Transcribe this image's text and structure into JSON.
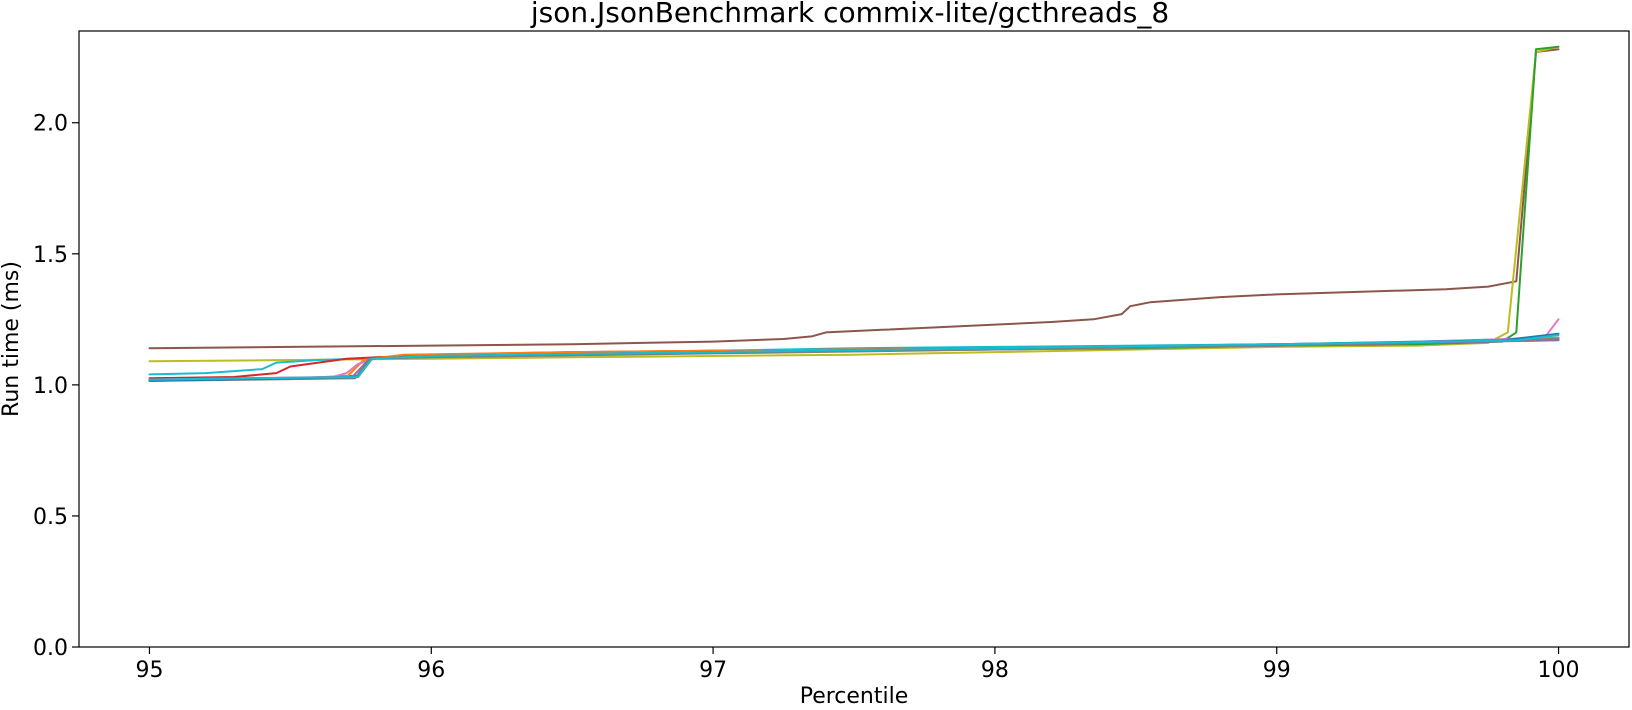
{
  "chart_data": {
    "type": "line",
    "title": "json.JsonBenchmark commix-lite/gcthreads_8",
    "xlabel": "Percentile",
    "ylabel": "Run time (ms)",
    "xlim": [
      94.75,
      100.25
    ],
    "ylim": [
      0.0,
      2.35
    ],
    "xticks": [
      95,
      96,
      97,
      98,
      99,
      100
    ],
    "xtick_labels": [
      "95",
      "96",
      "97",
      "98",
      "99",
      "100"
    ],
    "yticks": [
      0.0,
      0.5,
      1.0,
      1.5,
      2.0
    ],
    "ytick_labels": [
      "0.0",
      "0.5",
      "1.0",
      "1.5",
      "2.0"
    ],
    "grid": false,
    "legend": false,
    "series": [
      {
        "color": "#8c564b",
        "points": [
          [
            95.0,
            1.14
          ],
          [
            95.5,
            1.145
          ],
          [
            96.0,
            1.15
          ],
          [
            96.5,
            1.155
          ],
          [
            97.0,
            1.165
          ],
          [
            97.25,
            1.175
          ],
          [
            97.35,
            1.185
          ],
          [
            97.4,
            1.2
          ],
          [
            97.6,
            1.21
          ],
          [
            97.8,
            1.22
          ],
          [
            98.0,
            1.23
          ],
          [
            98.2,
            1.24
          ],
          [
            98.35,
            1.25
          ],
          [
            98.45,
            1.27
          ],
          [
            98.48,
            1.3
          ],
          [
            98.55,
            1.315
          ],
          [
            98.8,
            1.335
          ],
          [
            99.0,
            1.345
          ],
          [
            99.3,
            1.355
          ],
          [
            99.6,
            1.365
          ],
          [
            99.75,
            1.375
          ],
          [
            99.85,
            1.395
          ],
          [
            99.92,
            2.27
          ],
          [
            100.0,
            2.28
          ]
        ]
      },
      {
        "color": "#bcbd22",
        "points": [
          [
            95.0,
            1.09
          ],
          [
            95.5,
            1.095
          ],
          [
            96.0,
            1.1
          ],
          [
            96.5,
            1.105
          ],
          [
            97.0,
            1.11
          ],
          [
            97.5,
            1.115
          ],
          [
            98.0,
            1.125
          ],
          [
            98.5,
            1.135
          ],
          [
            99.0,
            1.145
          ],
          [
            99.5,
            1.15
          ],
          [
            99.75,
            1.16
          ],
          [
            99.82,
            1.2
          ],
          [
            99.92,
            2.27
          ],
          [
            100.0,
            2.29
          ]
        ]
      },
      {
        "color": "#2ca02c",
        "points": [
          [
            95.0,
            1.02
          ],
          [
            95.5,
            1.025
          ],
          [
            95.74,
            1.035
          ],
          [
            95.78,
            1.1
          ],
          [
            96.0,
            1.11
          ],
          [
            96.5,
            1.12
          ],
          [
            97.0,
            1.125
          ],
          [
            97.5,
            1.13
          ],
          [
            98.0,
            1.135
          ],
          [
            98.5,
            1.14
          ],
          [
            99.0,
            1.15
          ],
          [
            99.5,
            1.155
          ],
          [
            99.8,
            1.165
          ],
          [
            99.85,
            1.2
          ],
          [
            99.92,
            2.28
          ],
          [
            100.0,
            2.29
          ]
        ]
      },
      {
        "color": "#17becf",
        "points": [
          [
            95.0,
            1.04
          ],
          [
            95.2,
            1.045
          ],
          [
            95.4,
            1.06
          ],
          [
            95.45,
            1.085
          ],
          [
            95.6,
            1.095
          ],
          [
            96.0,
            1.11
          ],
          [
            96.5,
            1.12
          ],
          [
            97.0,
            1.13
          ],
          [
            97.5,
            1.14
          ],
          [
            98.0,
            1.145
          ],
          [
            98.5,
            1.15
          ],
          [
            99.0,
            1.155
          ],
          [
            99.5,
            1.165
          ],
          [
            100.0,
            1.18
          ]
        ]
      },
      {
        "color": "#d62728",
        "points": [
          [
            95.0,
            1.025
          ],
          [
            95.3,
            1.03
          ],
          [
            95.45,
            1.045
          ],
          [
            95.5,
            1.07
          ],
          [
            95.6,
            1.085
          ],
          [
            95.7,
            1.1
          ],
          [
            96.0,
            1.115
          ],
          [
            96.5,
            1.125
          ],
          [
            97.0,
            1.13
          ],
          [
            97.5,
            1.135
          ],
          [
            98.0,
            1.14
          ],
          [
            98.5,
            1.145
          ],
          [
            99.0,
            1.15
          ],
          [
            99.5,
            1.16
          ],
          [
            99.8,
            1.17
          ],
          [
            100.0,
            1.175
          ]
        ]
      },
      {
        "color": "#ff7f0e",
        "points": [
          [
            95.0,
            1.02
          ],
          [
            95.7,
            1.03
          ],
          [
            95.76,
            1.095
          ],
          [
            95.9,
            1.115
          ],
          [
            96.5,
            1.125
          ],
          [
            97.0,
            1.13
          ],
          [
            97.5,
            1.135
          ],
          [
            98.0,
            1.14
          ],
          [
            98.5,
            1.145
          ],
          [
            99.0,
            1.15
          ],
          [
            99.5,
            1.16
          ],
          [
            99.8,
            1.17
          ],
          [
            100.0,
            1.18
          ]
        ]
      },
      {
        "color": "#e377c2",
        "points": [
          [
            95.0,
            1.02
          ],
          [
            95.65,
            1.03
          ],
          [
            95.7,
            1.045
          ],
          [
            95.74,
            1.08
          ],
          [
            95.8,
            1.1
          ],
          [
            96.0,
            1.11
          ],
          [
            97.0,
            1.125
          ],
          [
            98.0,
            1.135
          ],
          [
            99.0,
            1.15
          ],
          [
            99.7,
            1.17
          ],
          [
            99.95,
            1.18
          ],
          [
            100.0,
            1.25
          ]
        ]
      },
      {
        "color": "#9467bd",
        "points": [
          [
            95.0,
            1.02
          ],
          [
            95.72,
            1.03
          ],
          [
            95.78,
            1.1
          ],
          [
            96.0,
            1.11
          ],
          [
            97.0,
            1.125
          ],
          [
            98.0,
            1.14
          ],
          [
            99.0,
            1.15
          ],
          [
            100.0,
            1.17
          ]
        ]
      },
      {
        "color": "#7f7f7f",
        "points": [
          [
            95.0,
            1.015
          ],
          [
            95.73,
            1.025
          ],
          [
            95.78,
            1.1
          ],
          [
            96.0,
            1.105
          ],
          [
            97.0,
            1.12
          ],
          [
            98.0,
            1.135
          ],
          [
            99.0,
            1.15
          ],
          [
            100.0,
            1.175
          ]
        ]
      },
      {
        "color": "#1f77b4",
        "points": [
          [
            95.0,
            1.015
          ],
          [
            95.74,
            1.03
          ],
          [
            95.79,
            1.1
          ],
          [
            96.0,
            1.11
          ],
          [
            97.0,
            1.125
          ],
          [
            98.0,
            1.14
          ],
          [
            99.0,
            1.155
          ],
          [
            99.8,
            1.17
          ],
          [
            100.0,
            1.195
          ]
        ]
      },
      {
        "color": "#17becf",
        "points": [
          [
            95.0,
            1.02
          ],
          [
            95.74,
            1.03
          ],
          [
            95.79,
            1.1
          ],
          [
            96.0,
            1.11
          ],
          [
            97.0,
            1.125
          ],
          [
            98.0,
            1.14
          ],
          [
            99.0,
            1.155
          ],
          [
            99.6,
            1.165
          ],
          [
            99.85,
            1.17
          ],
          [
            100.0,
            1.19
          ]
        ]
      }
    ]
  }
}
